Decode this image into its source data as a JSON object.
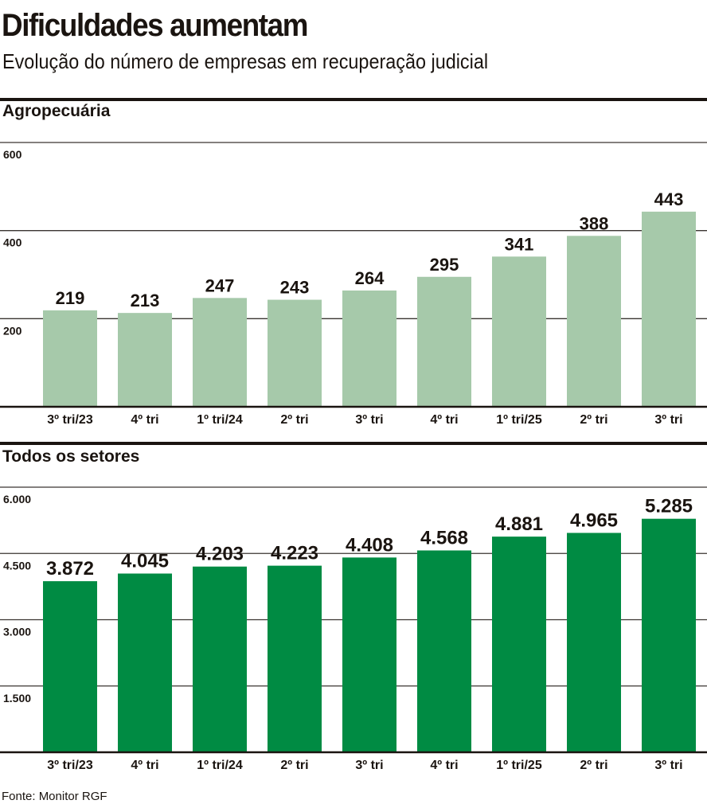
{
  "title": "Dificuldades aumentam",
  "subtitle": "Evolução do número de empresas em recuperação judicial",
  "source": "Fonte: Monitor RGF",
  "colors": {
    "agro": "#a6c9aa",
    "todos": "#008b43",
    "text": "#1a1410"
  },
  "chart_data": [
    {
      "type": "bar",
      "title": "Agropecuária",
      "categories": [
        "3º tri/23",
        "4º tri",
        "1º tri/24",
        "2º tri",
        "3º tri",
        "4º tri",
        "1º tri/25",
        "2º tri",
        "3º tri"
      ],
      "values": [
        219,
        213,
        247,
        243,
        264,
        295,
        341,
        388,
        443
      ],
      "value_labels": [
        "219",
        "213",
        "247",
        "243",
        "264",
        "295",
        "341",
        "388",
        "443"
      ],
      "ylim": [
        0,
        600
      ],
      "yticks": [
        200,
        400,
        600
      ],
      "ytick_labels": [
        "200",
        "400",
        "600"
      ],
      "grid": true
    },
    {
      "type": "bar",
      "title": "Todos os setores",
      "categories": [
        "3º tri/23",
        "4º tri",
        "1º tri/24",
        "2º tri",
        "3º tri",
        "4º tri",
        "1º tri/25",
        "2º tri",
        "3º tri"
      ],
      "values": [
        3872,
        4045,
        4203,
        4223,
        4408,
        4568,
        4881,
        4965,
        5285
      ],
      "value_labels": [
        "3.872",
        "4.045",
        "4.203",
        "4.223",
        "4.408",
        "4.568",
        "4.881",
        "4.965",
        "5.285"
      ],
      "ylim": [
        0,
        6000
      ],
      "yticks": [
        1500,
        3000,
        4500,
        6000
      ],
      "ytick_labels": [
        "1.500",
        "3.000",
        "4.500",
        "6.000"
      ],
      "grid": true
    }
  ]
}
